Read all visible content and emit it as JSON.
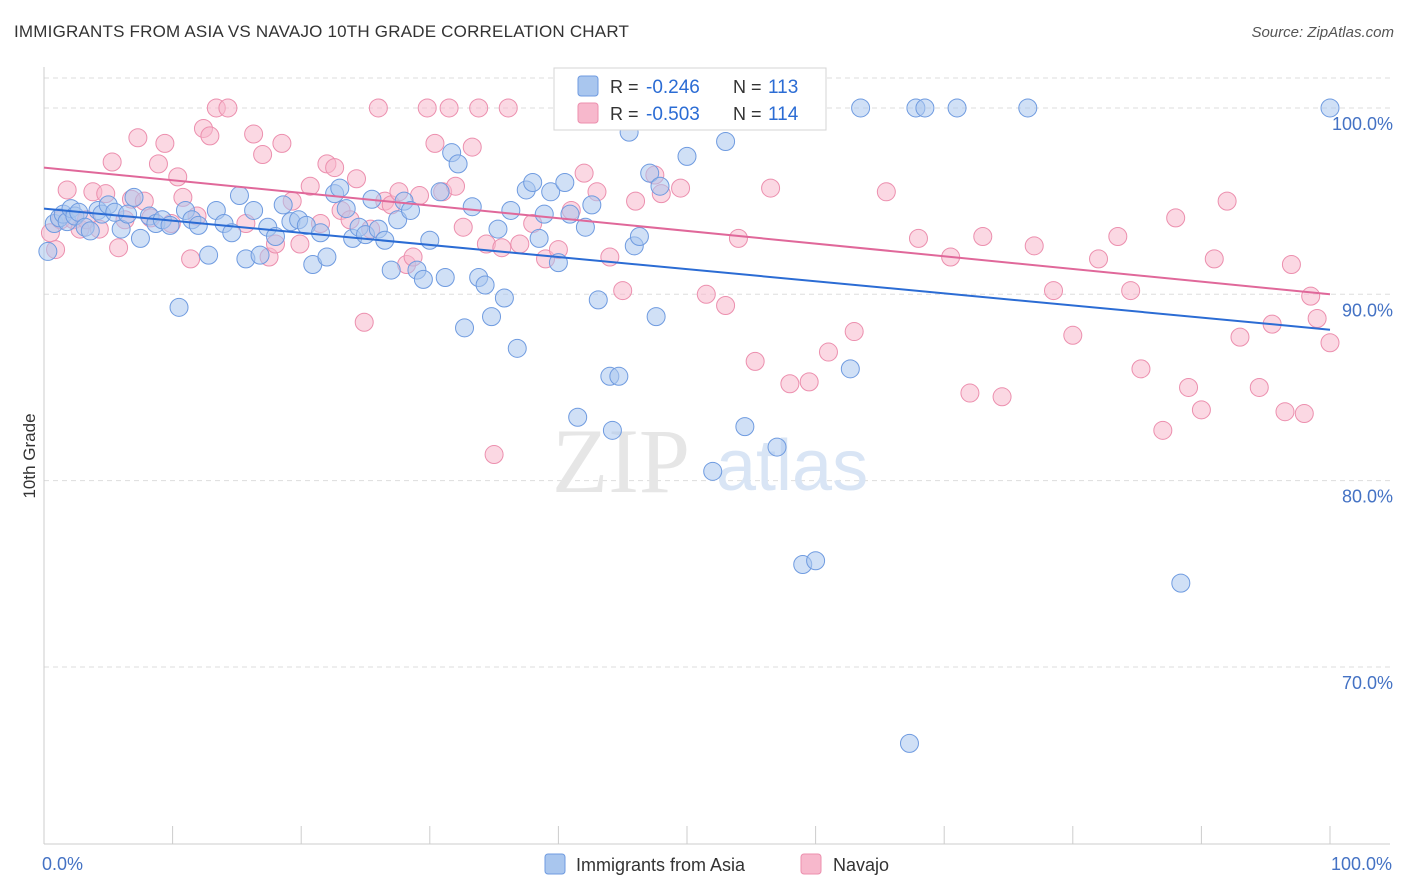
{
  "title": "IMMIGRANTS FROM ASIA VS NAVAJO 10TH GRADE CORRELATION CHART",
  "source": "Source: ZipAtlas.com",
  "colors": {
    "blue_fill": "#a9c6ee",
    "blue_stroke": "#6f9be0",
    "blue_line": "#2b6cd4",
    "pink_fill": "#f7b8cc",
    "pink_stroke": "#ec8fae",
    "pink_line": "#e0689a",
    "tick_text": "#4472c4",
    "grid": "#dddddd"
  },
  "legend": {
    "r_label": "R =",
    "n_label": "N =",
    "blue": {
      "r": "-0.246",
      "n": "113"
    },
    "pink": {
      "r": "-0.503",
      "n": "114"
    }
  },
  "watermark": {
    "zip": "ZIP",
    "atlas": "atlas"
  },
  "chart_data": {
    "type": "scatter",
    "title": "IMMIGRANTS FROM ASIA VS NAVAJO 10TH GRADE CORRELATION CHART",
    "xlabel": "",
    "ylabel": "10th Grade",
    "xlim": [
      0,
      100
    ],
    "ylim": [
      60.5,
      101.5
    ],
    "x_tick_labels": [
      "0.0%",
      "100.0%"
    ],
    "y_ticks": [
      70,
      80,
      90,
      100
    ],
    "y_tick_labels": [
      "70.0%",
      "80.0%",
      "90.0%",
      "100.0%"
    ],
    "grid": true,
    "legend_placement": "top-center",
    "series": [
      {
        "name": "Immigrants from Asia",
        "color": "#a9c6ee",
        "r": -0.246,
        "n": 113,
        "trend": {
          "x": [
            0,
            100
          ],
          "y": [
            94.6,
            88.1
          ]
        },
        "points": [
          [
            0.3,
            92.3
          ],
          [
            0.8,
            93.8
          ],
          [
            1.2,
            94.1
          ],
          [
            1.5,
            94.3
          ],
          [
            1.8,
            93.9
          ],
          [
            2.1,
            94.6
          ],
          [
            2.4,
            94.2
          ],
          [
            2.7,
            94.4
          ],
          [
            3.2,
            93.6
          ],
          [
            3.6,
            93.4
          ],
          [
            4.2,
            94.5
          ],
          [
            4.5,
            94.3
          ],
          [
            5.0,
            94.8
          ],
          [
            5.5,
            94.4
          ],
          [
            6.0,
            93.5
          ],
          [
            6.5,
            94.3
          ],
          [
            7.0,
            95.2
          ],
          [
            7.5,
            93.0
          ],
          [
            8.2,
            94.2
          ],
          [
            8.7,
            93.8
          ],
          [
            9.2,
            94.0
          ],
          [
            9.8,
            93.7
          ],
          [
            10.5,
            89.3
          ],
          [
            11.0,
            94.5
          ],
          [
            11.5,
            94.0
          ],
          [
            12.0,
            93.7
          ],
          [
            12.8,
            92.1
          ],
          [
            13.4,
            94.5
          ],
          [
            14.0,
            93.8
          ],
          [
            14.6,
            93.3
          ],
          [
            15.2,
            95.3
          ],
          [
            15.7,
            91.9
          ],
          [
            16.3,
            94.5
          ],
          [
            16.8,
            92.1
          ],
          [
            17.4,
            93.6
          ],
          [
            18.0,
            93.1
          ],
          [
            18.6,
            94.8
          ],
          [
            19.2,
            93.9
          ],
          [
            19.8,
            94.0
          ],
          [
            20.4,
            93.7
          ],
          [
            20.9,
            91.6
          ],
          [
            21.5,
            93.3
          ],
          [
            22.0,
            92.0
          ],
          [
            22.6,
            95.4
          ],
          [
            23.0,
            95.7
          ],
          [
            23.5,
            94.6
          ],
          [
            24.0,
            93.0
          ],
          [
            24.5,
            93.6
          ],
          [
            25.0,
            93.2
          ],
          [
            25.5,
            95.1
          ],
          [
            26.0,
            93.5
          ],
          [
            26.5,
            92.9
          ],
          [
            27.0,
            91.3
          ],
          [
            27.5,
            94.0
          ],
          [
            28.0,
            95.0
          ],
          [
            28.5,
            94.5
          ],
          [
            29.0,
            91.3
          ],
          [
            29.5,
            90.8
          ],
          [
            30.0,
            92.9
          ],
          [
            30.8,
            95.5
          ],
          [
            31.2,
            90.9
          ],
          [
            31.7,
            97.6
          ],
          [
            32.2,
            97.0
          ],
          [
            32.7,
            88.2
          ],
          [
            33.3,
            94.7
          ],
          [
            33.8,
            90.9
          ],
          [
            34.3,
            90.5
          ],
          [
            34.8,
            88.8
          ],
          [
            35.3,
            93.5
          ],
          [
            35.8,
            89.8
          ],
          [
            36.3,
            94.5
          ],
          [
            36.8,
            87.1
          ],
          [
            37.5,
            95.6
          ],
          [
            38.0,
            96.0
          ],
          [
            38.5,
            93.0
          ],
          [
            38.9,
            94.3
          ],
          [
            39.4,
            95.5
          ],
          [
            40.0,
            91.7
          ],
          [
            40.5,
            96.0
          ],
          [
            40.9,
            94.3
          ],
          [
            41.5,
            83.4
          ],
          [
            42.1,
            93.6
          ],
          [
            42.6,
            94.8
          ],
          [
            43.1,
            89.7
          ],
          [
            44.0,
            85.6
          ],
          [
            44.2,
            82.7
          ],
          [
            44.7,
            85.6
          ],
          [
            45.5,
            98.7
          ],
          [
            45.9,
            92.6
          ],
          [
            46.3,
            93.1
          ],
          [
            47.1,
            96.5
          ],
          [
            47.6,
            88.8
          ],
          [
            47.9,
            95.8
          ],
          [
            50.0,
            97.4
          ],
          [
            52.0,
            80.5
          ],
          [
            53.0,
            98.2
          ],
          [
            53.5,
            100.0
          ],
          [
            54.5,
            82.9
          ],
          [
            57.0,
            81.8
          ],
          [
            59.0,
            75.5
          ],
          [
            60.0,
            75.7
          ],
          [
            62.7,
            86.0
          ],
          [
            63.5,
            100.0
          ],
          [
            67.3,
            65.9
          ],
          [
            67.8,
            100.0
          ],
          [
            68.5,
            100.0
          ],
          [
            71.0,
            100.0
          ],
          [
            76.5,
            100.0
          ],
          [
            88.4,
            74.5
          ],
          [
            100.0,
            100.0
          ],
          [
            45.8,
            100.0
          ],
          [
            52.8,
            100.0
          ],
          [
            54.0,
            100.0
          ]
        ]
      },
      {
        "name": "Navajo",
        "color": "#f7b8cc",
        "r": -0.503,
        "n": 114,
        "trend": {
          "x": [
            0,
            100
          ],
          "y": [
            96.8,
            90.0
          ]
        },
        "points": [
          [
            0.5,
            93.3
          ],
          [
            0.9,
            92.4
          ],
          [
            1.3,
            94.0
          ],
          [
            1.8,
            95.6
          ],
          [
            2.3,
            94.0
          ],
          [
            2.8,
            93.5
          ],
          [
            3.3,
            94.0
          ],
          [
            3.8,
            95.5
          ],
          [
            4.3,
            93.5
          ],
          [
            4.8,
            95.4
          ],
          [
            5.3,
            97.1
          ],
          [
            5.8,
            92.5
          ],
          [
            6.3,
            94.0
          ],
          [
            6.8,
            95.1
          ],
          [
            7.3,
            98.4
          ],
          [
            7.8,
            95.0
          ],
          [
            8.3,
            94.1
          ],
          [
            8.9,
            97.0
          ],
          [
            9.4,
            98.1
          ],
          [
            9.9,
            93.8
          ],
          [
            10.4,
            96.3
          ],
          [
            10.8,
            95.2
          ],
          [
            11.4,
            91.9
          ],
          [
            11.9,
            94.2
          ],
          [
            12.4,
            98.9
          ],
          [
            12.9,
            98.5
          ],
          [
            13.4,
            100.0
          ],
          [
            14.3,
            100.0
          ],
          [
            15.7,
            93.8
          ],
          [
            16.3,
            98.6
          ],
          [
            17.0,
            97.5
          ],
          [
            17.5,
            92.0
          ],
          [
            18.0,
            92.7
          ],
          [
            18.5,
            98.1
          ],
          [
            19.3,
            95.0
          ],
          [
            19.9,
            92.7
          ],
          [
            20.7,
            95.8
          ],
          [
            21.5,
            93.8
          ],
          [
            22.0,
            97.0
          ],
          [
            22.6,
            96.8
          ],
          [
            23.1,
            94.5
          ],
          [
            23.8,
            94.0
          ],
          [
            24.3,
            96.2
          ],
          [
            24.9,
            88.5
          ],
          [
            25.4,
            93.5
          ],
          [
            26.0,
            100.0
          ],
          [
            26.5,
            95.0
          ],
          [
            27.0,
            94.8
          ],
          [
            27.6,
            95.5
          ],
          [
            28.2,
            91.6
          ],
          [
            28.7,
            92.0
          ],
          [
            29.2,
            95.3
          ],
          [
            29.8,
            100.0
          ],
          [
            30.4,
            98.1
          ],
          [
            31.0,
            95.5
          ],
          [
            31.5,
            100.0
          ],
          [
            32.0,
            95.8
          ],
          [
            32.6,
            93.6
          ],
          [
            33.3,
            97.9
          ],
          [
            33.8,
            100.0
          ],
          [
            34.4,
            92.7
          ],
          [
            35.0,
            81.4
          ],
          [
            35.6,
            92.5
          ],
          [
            36.1,
            100.0
          ],
          [
            37.0,
            92.7
          ],
          [
            38.0,
            93.8
          ],
          [
            39.0,
            91.9
          ],
          [
            40.0,
            92.4
          ],
          [
            41.0,
            94.5
          ],
          [
            42.0,
            96.5
          ],
          [
            43.0,
            95.5
          ],
          [
            44.0,
            92.0
          ],
          [
            45.0,
            90.2
          ],
          [
            46.0,
            95.0
          ],
          [
            47.5,
            96.4
          ],
          [
            48.0,
            95.4
          ],
          [
            49.5,
            95.7
          ],
          [
            51.5,
            90.0
          ],
          [
            53.0,
            89.4
          ],
          [
            54.0,
            93.0
          ],
          [
            55.3,
            86.4
          ],
          [
            56.5,
            95.7
          ],
          [
            58.0,
            85.2
          ],
          [
            59.5,
            85.3
          ],
          [
            61.0,
            86.9
          ],
          [
            63.0,
            88.0
          ],
          [
            65.5,
            95.5
          ],
          [
            68.0,
            93.0
          ],
          [
            70.5,
            92.0
          ],
          [
            72.0,
            84.7
          ],
          [
            73.0,
            93.1
          ],
          [
            74.5,
            84.5
          ],
          [
            77.0,
            92.6
          ],
          [
            78.5,
            90.2
          ],
          [
            80.0,
            87.8
          ],
          [
            82.0,
            91.9
          ],
          [
            83.5,
            93.1
          ],
          [
            84.5,
            90.2
          ],
          [
            85.3,
            86.0
          ],
          [
            87.0,
            82.7
          ],
          [
            88.0,
            94.1
          ],
          [
            89.0,
            85.0
          ],
          [
            90.0,
            83.8
          ],
          [
            91.0,
            91.9
          ],
          [
            92.0,
            95.0
          ],
          [
            93.0,
            87.7
          ],
          [
            94.5,
            85.0
          ],
          [
            95.5,
            88.4
          ],
          [
            96.5,
            83.7
          ],
          [
            97.0,
            91.6
          ],
          [
            98.0,
            83.6
          ],
          [
            98.5,
            89.9
          ],
          [
            99.0,
            88.7
          ],
          [
            100.0,
            87.4
          ]
        ]
      }
    ]
  },
  "bottom_legend": {
    "items": [
      {
        "label": "Immigrants from Asia"
      },
      {
        "label": "Navajo"
      }
    ]
  }
}
